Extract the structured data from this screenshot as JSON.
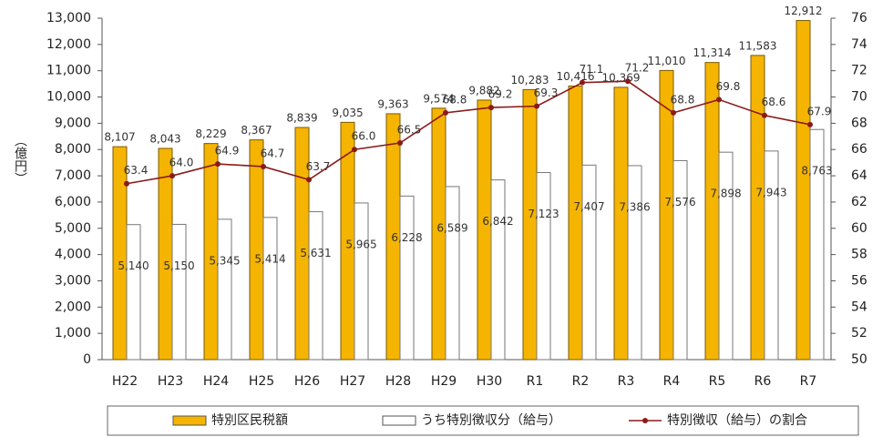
{
  "chart_data": {
    "type": "bar",
    "y_label": "（億円）",
    "categories": [
      "H22",
      "H23",
      "H24",
      "H25",
      "H26",
      "H27",
      "H28",
      "H29",
      "H30",
      "R1",
      "R2",
      "R3",
      "R4",
      "R5",
      "R6",
      "R7"
    ],
    "series": [
      {
        "name": "特別区民税額",
        "type": "bar",
        "color": "#f5b400",
        "values": [
          8107,
          8043,
          8229,
          8367,
          8839,
          9035,
          9363,
          9574,
          9882,
          10283,
          10416,
          10369,
          11010,
          11314,
          11583,
          12912
        ],
        "value_labels": [
          "8,107",
          "8,043",
          "8,229",
          "8,367",
          "8,839",
          "9,035",
          "9,363",
          "9,574",
          "9,882",
          "10,283",
          "10,416",
          "10,369",
          "11,010",
          "11,314",
          "11,583",
          "12,912"
        ]
      },
      {
        "name": "うち特別徴収分（給与）",
        "type": "bar",
        "color": "#ffffff",
        "values": [
          5140,
          5150,
          5345,
          5414,
          5631,
          5965,
          6228,
          6589,
          6842,
          7123,
          7407,
          7386,
          7576,
          7898,
          7943,
          8763
        ],
        "value_labels": [
          "5,140",
          "5,150",
          "5,345",
          "5,414",
          "5,631",
          "5,965",
          "6,228",
          "6,589",
          "6,842",
          "7,123",
          "7,407",
          "7,386",
          "7,576",
          "7,898",
          "7,943",
          "8,763"
        ]
      },
      {
        "name": "特別徴収（給与）の割合",
        "type": "line",
        "axis": "y2",
        "color": "#8b1a1a",
        "values": [
          63.4,
          64.0,
          64.9,
          64.7,
          63.7,
          66.0,
          66.5,
          68.8,
          69.2,
          69.3,
          71.1,
          71.2,
          68.8,
          69.8,
          68.6,
          67.9
        ],
        "value_labels": [
          "63.4",
          "64.0",
          "64.9",
          "64.7",
          "63.7",
          "66.0",
          "66.5",
          "68.8",
          "69.2",
          "69.3",
          "71.1",
          "71.2",
          "68.8",
          "69.8",
          "68.6",
          "67.9"
        ]
      }
    ],
    "ylim": [
      0,
      13000
    ],
    "yticks": [
      0,
      {
        "value": 1000,
        "label": "1,000"
      },
      {
        "value": 2000,
        "label": "2,000"
      },
      {
        "value": 3000,
        "label": "3,000"
      },
      {
        "value": 4000,
        "label": "4,000"
      },
      {
        "value": 5000,
        "label": "5,000"
      },
      {
        "value": 6000,
        "label": "6,000"
      },
      {
        "value": 7000,
        "label": "7,000"
      },
      {
        "value": 8000,
        "label": "8,000"
      },
      {
        "value": 9000,
        "label": "9,000"
      },
      {
        "value": 10000,
        "label": "10,000"
      },
      {
        "value": 11000,
        "label": "11,000"
      },
      {
        "value": 12000,
        "label": "12,000"
      },
      {
        "value": 13000,
        "label": "13,000"
      }
    ],
    "y2lim": [
      50,
      76
    ],
    "y2ticks": [
      50,
      52,
      54,
      56,
      58,
      60,
      62,
      64,
      66,
      68,
      70,
      72,
      74,
      76
    ],
    "grid": false,
    "legend": "bottom"
  }
}
